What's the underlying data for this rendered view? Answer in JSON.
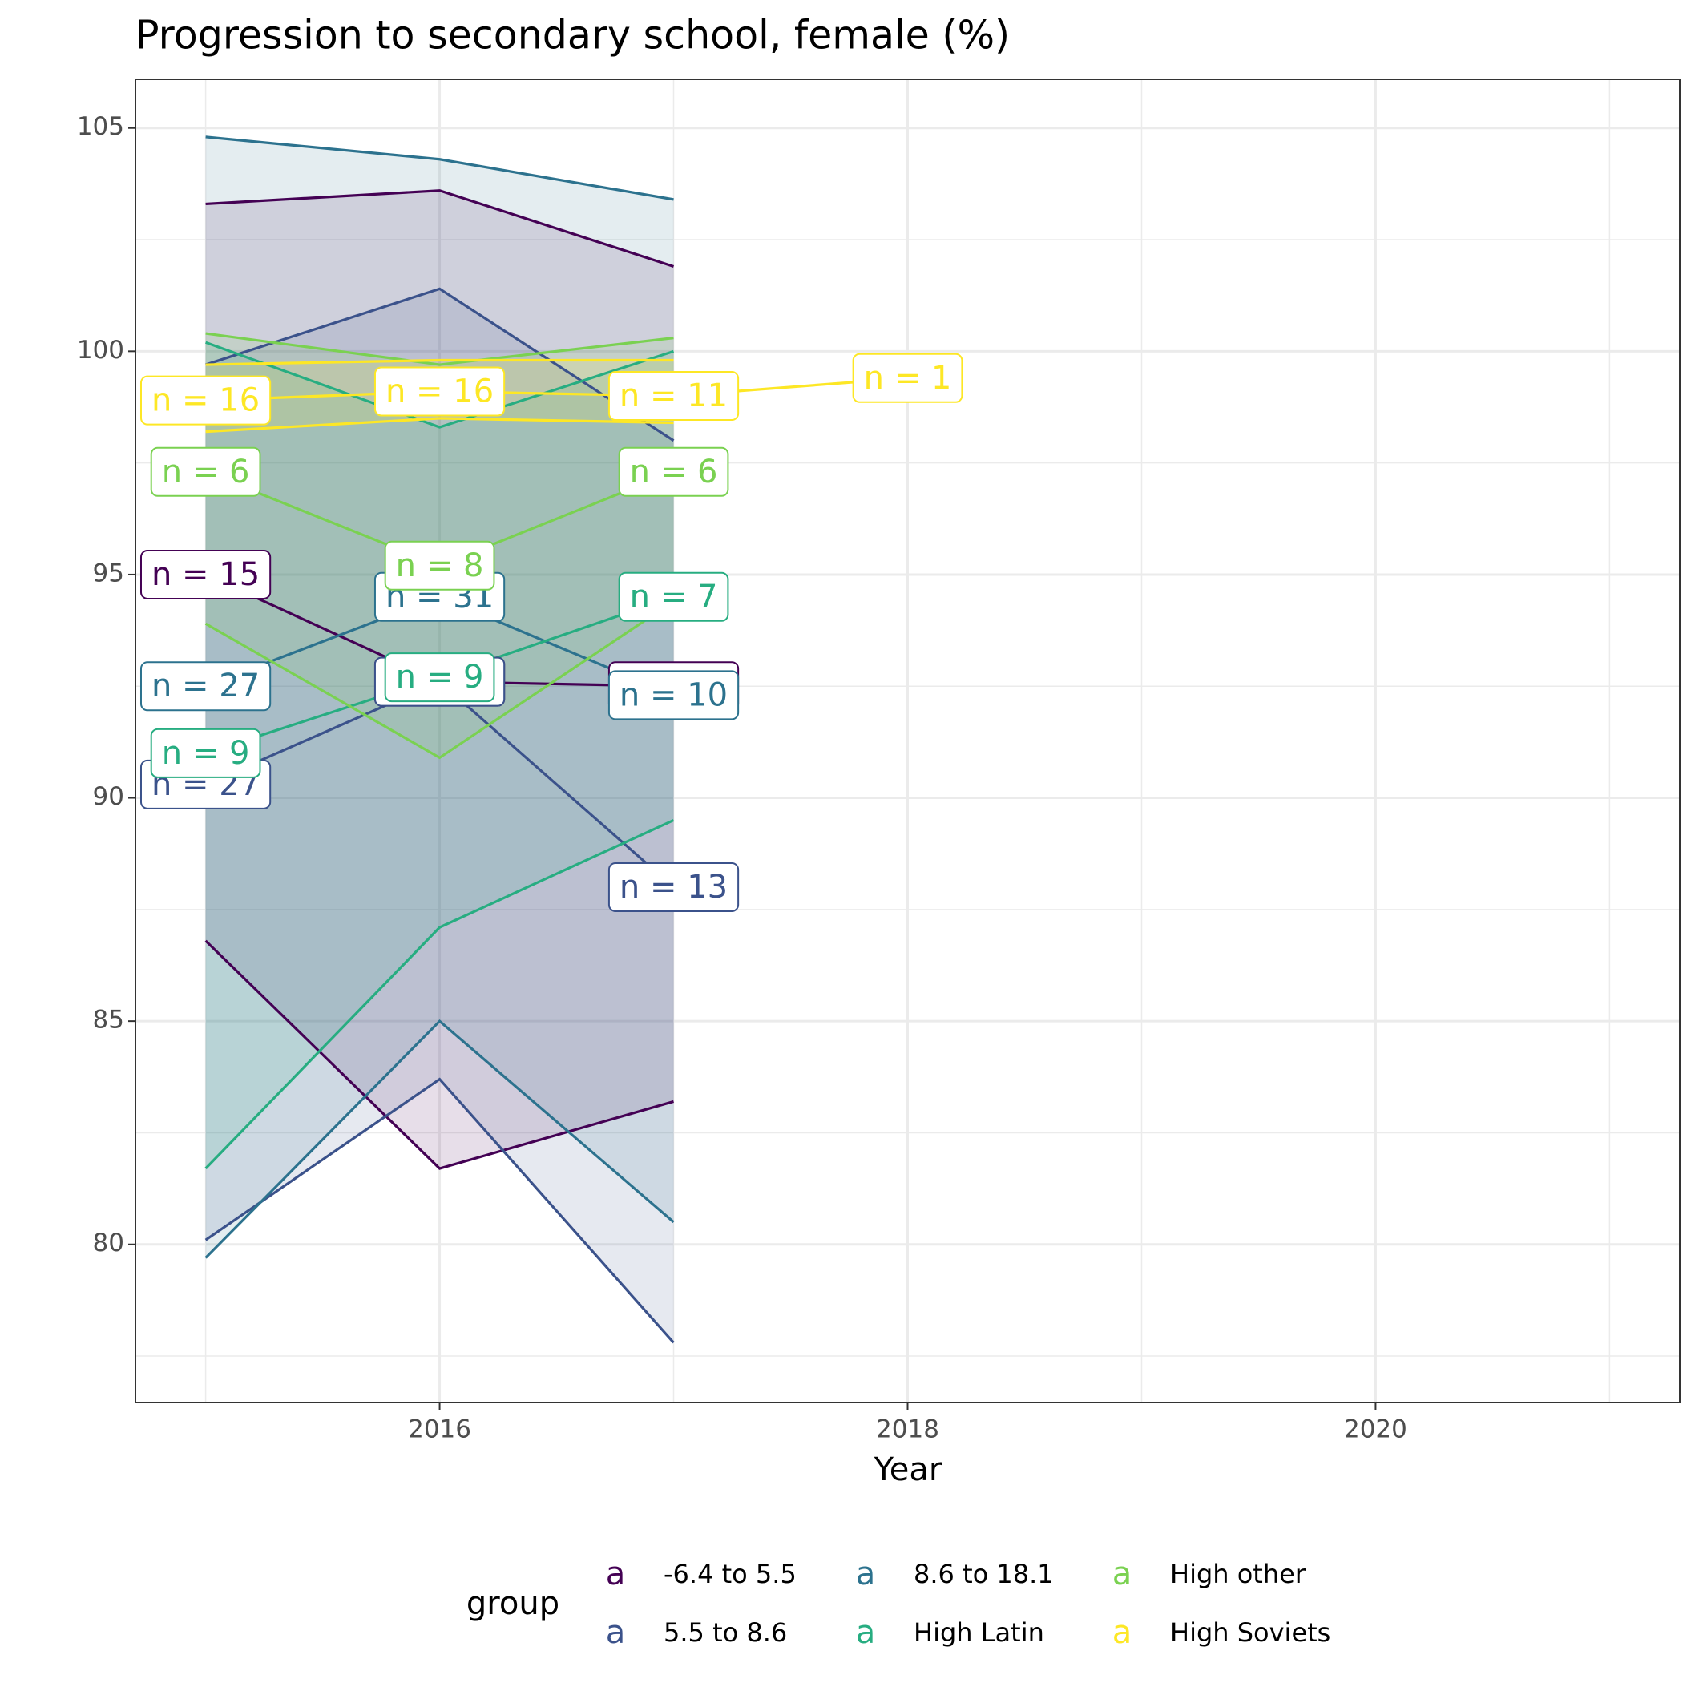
{
  "chart_data": {
    "type": "line",
    "title": "Progression to secondary school, female (%)",
    "x_label": "Year",
    "legend_title": "group",
    "x": [
      2015,
      2016,
      2017,
      2018
    ],
    "xlim": [
      2014.7,
      2021.3
    ],
    "xticks": [
      2016,
      2018,
      2020
    ],
    "x_minor_grid": [
      2015,
      2017,
      2019,
      2021
    ],
    "ylim": [
      76.46,
      106.09
    ],
    "yticks": [
      80,
      85,
      90,
      95,
      100,
      105
    ],
    "y_minor_grid": [
      77.5,
      82.5,
      87.5,
      92.5,
      97.5,
      102.5
    ],
    "grid": true,
    "legend_position": "bottom",
    "series": [
      {
        "name": "-6.4 to 5.5",
        "color": "#440154",
        "values": [
          95.0,
          92.6,
          92.5,
          null
        ],
        "lower": [
          86.8,
          81.7,
          83.2,
          null
        ],
        "upper": [
          103.3,
          103.6,
          101.9,
          null
        ],
        "labels": [
          "n = 15",
          "n = 15",
          "n = 12",
          null
        ]
      },
      {
        "name": "5.5 to 8.6",
        "color": "#3b528b",
        "values": [
          90.3,
          92.6,
          88.0,
          null
        ],
        "lower": [
          80.1,
          83.7,
          77.8,
          null
        ],
        "upper": [
          99.7,
          101.4,
          98.0,
          null
        ],
        "labels": [
          "n = 27",
          "n = 27",
          "n = 13",
          null
        ]
      },
      {
        "name": "8.6 to 18.1",
        "color": "#2c728e",
        "values": [
          92.5,
          94.5,
          92.3,
          null
        ],
        "lower": [
          79.7,
          85.0,
          80.5,
          null
        ],
        "upper": [
          104.8,
          104.3,
          103.4,
          null
        ],
        "labels": [
          "n = 27",
          "n = 31",
          "n = 10",
          null
        ]
      },
      {
        "name": "High Latin",
        "color": "#27ad81",
        "values": [
          91.0,
          92.7,
          94.5,
          null
        ],
        "lower": [
          81.7,
          87.1,
          89.5,
          null
        ],
        "upper": [
          100.2,
          98.3,
          100.0,
          null
        ],
        "labels": [
          "n = 9",
          "n = 9",
          "n = 7",
          null
        ]
      },
      {
        "name": "High other",
        "color": "#7ad151",
        "values": [
          97.3,
          95.2,
          97.3,
          null
        ],
        "lower": [
          93.9,
          90.9,
          94.4,
          null
        ],
        "upper": [
          100.4,
          99.7,
          100.3,
          null
        ],
        "labels": [
          "n = 6",
          "n = 8",
          "n = 6",
          null
        ]
      },
      {
        "name": "High Soviets",
        "color": "#fde725",
        "values": [
          98.9,
          99.1,
          99.0,
          99.4
        ],
        "lower": [
          98.2,
          98.5,
          98.4,
          null
        ],
        "upper": [
          99.7,
          99.8,
          99.8,
          null
        ],
        "labels": [
          "n = 16",
          "n = 16",
          "n = 11",
          "n = 1"
        ]
      }
    ]
  }
}
